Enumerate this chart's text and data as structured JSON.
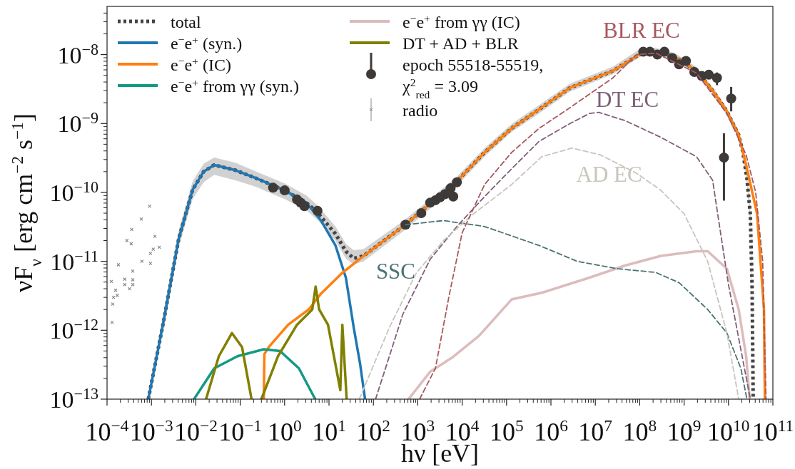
{
  "chart_data": {
    "type": "line",
    "xlabel": "hν [eV]",
    "ylabel": "νF$_{ν}$ [erg cm$^{−2}$ s$^{−1}$]",
    "log": "xy",
    "legend": "top left",
    "xlim": [
      0.0001,
      100000000000.0
    ],
    "ylim": [
      1e-13,
      5e-08
    ],
    "xticks": [
      {
        "value": 0.0001,
        "label": "10$^{−4}$"
      },
      {
        "value": 0.001,
        "label": "10$^{−3}$"
      },
      {
        "value": 0.01,
        "label": "10$^{−2}$"
      },
      {
        "value": 0.1,
        "label": "10$^{−1}$"
      },
      {
        "value": 1,
        "label": "10$^{0}$"
      },
      {
        "value": 10,
        "label": "10$^{1}$"
      },
      {
        "value": 100,
        "label": "10$^{2}$"
      },
      {
        "value": 1000.0,
        "label": "10$^{3}$"
      },
      {
        "value": 10000.0,
        "label": "10$^{4}$"
      },
      {
        "value": 100000.0,
        "label": "10$^{5}$"
      },
      {
        "value": 1000000.0,
        "label": "10$^{6}$"
      },
      {
        "value": 10000000.0,
        "label": "10$^{7}$"
      },
      {
        "value": 100000000.0,
        "label": "10$^{8}$"
      },
      {
        "value": 1000000000.0,
        "label": "10$^{9}$"
      },
      {
        "value": 10000000000.0,
        "label": "10$^{10}$"
      },
      {
        "value": 100000000000.0,
        "label": "10$^{11}$"
      }
    ],
    "yticks": [
      {
        "value": 1e-13,
        "label": "10$^{−13}$"
      },
      {
        "value": 1e-12,
        "label": "10$^{−12}$"
      },
      {
        "value": 1e-11,
        "label": "10$^{−11}$"
      },
      {
        "value": 1e-10,
        "label": "10$^{−10}$"
      },
      {
        "value": 1e-09,
        "label": "10$^{−9}$"
      },
      {
        "value": 1e-08,
        "label": "10$^{−8}$"
      }
    ],
    "series": [
      {
        "name": "total",
        "color": "#444444",
        "line_style": "dotted",
        "x": [
          0.00085,
          0.0019,
          0.0041,
          0.0085,
          0.015,
          0.026,
          0.078,
          0.23,
          1.0,
          3.1,
          5.5,
          14,
          24,
          36,
          60,
          460,
          1900.0,
          7600.0,
          32000.0,
          130000.0,
          540000.0,
          2700000.0,
          25000000.0,
          110000000.0,
          230000000.0,
          620000000.0,
          1900000000.0,
          4400000000.0,
          9200000000.0,
          17000000000.0,
          21000000000.0,
          26000000000.0,
          31000000000.0,
          34000000000.0,
          36000000000.0
        ],
        "values": [
          1e-13,
          1.4e-12,
          2.1e-11,
          1.1e-10,
          2e-10,
          2.5e-10,
          2.1e-10,
          1.6e-10,
          1.07e-10,
          7.1e-11,
          5.1e-11,
          2.5e-11,
          1.4e-11,
          1.1e-11,
          1.2e-11,
          3.2e-11,
          6.8e-11,
          1.45e-10,
          3.8e-10,
          8.5e-10,
          1.6e-09,
          3.3e-09,
          5.8e-09,
          1.05e-08,
          1.1e-08,
          9.3e-09,
          5.8e-09,
          3e-09,
          1.5e-09,
          6.8e-10,
          3.9e-10,
          1.6e-10,
          4.9e-11,
          4.6e-12,
          1e-13
        ],
        "lower": [
          1e-13,
          1.1e-12,
          1.6e-11,
          8e-11,
          1.4e-10,
          1.8e-10,
          1.5e-10,
          1.2e-10,
          8e-11,
          5.5e-11,
          4e-11,
          2e-11,
          1.1e-11,
          9e-12,
          1e-11,
          2.7e-11,
          5.8e-11,
          1.25e-10,
          3.3e-10,
          7.5e-10,
          1.4e-09,
          2.9e-09,
          5.2e-09,
          9.5e-09,
          1e-08,
          8.3e-09,
          5.2e-09,
          2.7e-09,
          1.3e-09,
          6e-10,
          3.4e-10,
          1.3e-10,
          3.5e-11,
          3e-12,
          1e-13
        ],
        "upper": [
          1e-13,
          1.9e-12,
          2.8e-11,
          1.45e-10,
          2.6e-10,
          3.2e-10,
          2.7e-10,
          2e-10,
          1.35e-10,
          9e-11,
          6.5e-11,
          3.2e-11,
          1.8e-11,
          1.45e-11,
          1.5e-11,
          3.8e-11,
          8e-11,
          1.7e-10,
          4.4e-10,
          9.8e-10,
          1.85e-09,
          3.8e-09,
          6.7e-09,
          1.25e-08,
          1.25e-08,
          1.05e-08,
          6.6e-09,
          3.4e-09,
          1.7e-09,
          7.8e-10,
          4.5e-10,
          1.9e-10,
          6e-11,
          6e-12,
          1e-13
        ]
      },
      {
        "name": "e$^{−}$e$^{+}$ (syn.)",
        "color": "#1f77b4",
        "line_style": "solid",
        "x": [
          0.00085,
          0.0019,
          0.0041,
          0.0085,
          0.015,
          0.026,
          0.078,
          0.23,
          1.0,
          3.1,
          6.6,
          14,
          24,
          36,
          50,
          65
        ],
        "values": [
          1e-13,
          1.4e-12,
          2.1e-11,
          1.1e-10,
          2e-10,
          2.5e-10,
          2.1e-10,
          1.6e-10,
          1.07e-10,
          7.1e-11,
          3.9e-11,
          1.7e-11,
          5.8e-12,
          1.1e-12,
          3.3e-13,
          1e-13
        ]
      },
      {
        "name": "e$^{−}$e$^{+}$ (IC)",
        "color": "#ff7f0e",
        "line_style": "solid",
        "x": [
          0.34,
          0.35,
          0.44,
          1.2,
          3.5,
          6.6,
          20,
          48,
          460,
          1900.0,
          7600.0,
          32000.0,
          130000.0,
          540000.0,
          2700000.0,
          25000000.0,
          110000000.0,
          230000000.0,
          620000000.0,
          1900000000.0,
          4400000000.0,
          9200000000.0,
          17000000000.0,
          21000000000.0,
          25000000000.0,
          44000000000.0,
          63000000000.0,
          66000000000.0
        ],
        "values": [
          1e-13,
          4.5e-13,
          5.7e-13,
          1.2e-12,
          2e-12,
          3.4e-12,
          6.8e-12,
          1.07e-11,
          3.2e-11,
          6.8e-11,
          1.45e-10,
          3.8e-10,
          8.5e-10,
          1.6e-09,
          3.3e-09,
          5.8e-09,
          1.05e-08,
          1.1e-08,
          9.3e-09,
          5.8e-09,
          3e-09,
          1.5e-09,
          6.8e-10,
          3.9e-10,
          2.5e-10,
          4.9e-11,
          2e-12,
          1e-13
        ]
      },
      {
        "name": "e$^{−}$e$^{+}$ from γγ (syn.)",
        "color": "#139a84",
        "line_style": "solid",
        "x": [
          0.0091,
          0.026,
          0.087,
          0.34,
          0.79,
          2.1,
          4.9
        ],
        "values": [
          1e-13,
          2.8e-13,
          4.2e-13,
          5.3e-13,
          5e-13,
          2.8e-13,
          1e-13
        ]
      },
      {
        "name": "e$^{−}$e$^{+}$ from γγ (IC)",
        "color": "#dcbcbc",
        "line_style": "solid",
        "x": [
          620,
          1900.0,
          5900.0,
          24000.0,
          130000.0,
          620000.0,
          7400000.0,
          47000000.0,
          300000000.0,
          1900000000.0,
          3400000000.0,
          9200000000.0,
          17000000000.0,
          25000000000.0,
          30000000000.0
        ],
        "values": [
          1e-13,
          2.5e-13,
          4e-13,
          8.3e-13,
          2.8e-12,
          3.5e-12,
          5.8e-12,
          8.7e-12,
          1.2e-11,
          1.4e-11,
          1.4e-11,
          7.8e-12,
          2e-12,
          4.2e-13,
          1e-13
        ]
      },
      {
        "name": "DT + AD + BLR",
        "color": "#808000",
        "line_style": "solid",
        "x": [
          0.017,
          0.033,
          0.065,
          0.11,
          0.18,
          0.24,
          0.3,
          0.71,
          1.9,
          4.2,
          5.0,
          6.0,
          9.5,
          18,
          20,
          25
        ],
        "values": [
          1e-13,
          4.2e-13,
          9.1e-13,
          5.7e-13,
          1e-13,
          null,
          1e-13,
          4.2e-13,
          1.2e-12,
          2e-12,
          4.3e-12,
          2e-12,
          1.2e-12,
          1.35e-13,
          1.2e-12,
          1e-13
        ]
      },
      {
        "name": "epoch 55518-55519,\nχ$^{2}$$_{red}$ = 3.09",
        "type": "scatter",
        "marker": "circle",
        "color": "#3d3a38",
        "x": [
          0.55,
          1.0,
          1.9,
          2.3,
          2.8,
          5.5,
          530,
          1200.0,
          1900.0,
          2500.0,
          3200.0,
          4100.0,
          5500.0,
          6300.0,
          6800.0,
          7600.0,
          120000000.0,
          170000000.0,
          250000000.0,
          360000000.0,
          540000000.0,
          770000000.0,
          1100000000.0,
          1700000000.0,
          2500000000.0,
          3600000000.0,
          5500000000.0,
          11500000000.0,
          7900000000.0
        ],
        "values": [
          1.17e-10,
          1.07e-10,
          7.9e-11,
          7.1e-11,
          6.3e-11,
          5.4e-11,
          3.4e-11,
          5e-11,
          7.1e-11,
          7.7e-11,
          8.5e-11,
          9.4e-11,
          1.15e-10,
          8.7e-11,
          null,
          1.4e-10,
          1.1e-08,
          1.1e-08,
          1e-08,
          1.1e-08,
          8.9e-09,
          7.2e-09,
          8.1e-09,
          5.6e-09,
          4.9e-09,
          5.1e-09,
          4.6e-09,
          2.3e-09,
          3.2e-10
        ],
        "errors": [
          null,
          null,
          null,
          null,
          null,
          null,
          null,
          null,
          null,
          null,
          null,
          null,
          null,
          null,
          null,
          null,
          null,
          null,
          null,
          null,
          null,
          null,
          null,
          null,
          null,
          null,
          [
            3.6e-09,
            5.5e-09
          ],
          [
            1.5e-09,
            3.4e-09
          ],
          [
            7.6e-11,
            7.2e-10
          ]
        ]
      },
      {
        "name": "radio",
        "type": "scatter",
        "marker": "cross",
        "color": "#8a8a8a",
        "x": [
          0.000125,
          0.00013,
          0.000134,
          0.00014,
          0.000156,
          0.00017,
          0.00018,
          0.00025,
          0.00025,
          0.00028,
          0.00032,
          0.00035,
          0.00036,
          0.00038,
          0.00038,
          0.00038,
          0.00059,
          0.00061,
          0.00091,
          0.00095,
          0.00095,
          0.0011,
          0.0012,
          0.0015
        ],
        "values": [
          5.1e-12,
          1.3e-12,
          2.4e-12,
          3e-12,
          3.8e-12,
          3.2e-12,
          8.9e-12,
          5.5e-12,
          4.6e-12,
          2e-11,
          4e-12,
          1.8e-11,
          2.9e-11,
          7.2e-12,
          5.4e-12,
          4.6e-12,
          4.1e-11,
          1e-11,
          6.3e-11,
          1.3e-11,
          9.3e-12,
          1.5e-11,
          2.3e-11,
          1.6e-11
        ]
      },
      {
        "name": "SSC",
        "color": "#4b7373",
        "line_style": "dashed",
        "x": [
          530,
          3800.0,
          32000.0,
          540000.0,
          3900000.0,
          32000000.0,
          230000000.0,
          770000000.0,
          3400000000.0,
          9200000000.0,
          19000000000.0,
          26000000000.0
        ],
        "values": [
          3.4e-11,
          3.9e-11,
          3.2e-11,
          1.7e-11,
          1e-11,
          7.8e-12,
          6.9e-12,
          4.9e-12,
          2e-12,
          9.1e-13,
          2.8e-13,
          1e-13
        ]
      },
      {
        "name": "DT EC",
        "color": "#7f5f78",
        "line_style": "dashed",
        "x": [
          112,
          460,
          1900.0,
          7600.0,
          32000.0,
          130000.0,
          540000.0,
          2700000.0,
          7400000.0,
          12000000.0,
          47000000.0,
          300000000.0,
          1900000000.0,
          4400000000.0,
          5700000000.0,
          10000000000.0,
          31000000000.0
        ],
        "values": [
          1e-13,
          1.7e-12,
          1.07e-11,
          3.2e-11,
          8.7e-11,
          2.2e-10,
          5.5e-10,
          1e-09,
          1.4e-09,
          1.45e-09,
          1.1e-09,
          6.3e-10,
          3.3e-10,
          1.5e-10,
          4.9e-11,
          4.6e-12,
          1e-13
        ]
      },
      {
        "name": "AD EC",
        "color": "#c9c5bd",
        "line_style": "dashed",
        "x": [
          48,
          230,
          930,
          3800.0,
          16000.0,
          130000.0,
          620000.0,
          3000000.0,
          13000000.0,
          85000000.0,
          300000000.0,
          1000000000.0,
          3400000000.0,
          9200000000.0,
          17000000000.0
        ],
        "values": [
          1e-13,
          1.1e-12,
          6.8e-12,
          2e-11,
          4.6e-11,
          1.3e-10,
          3.3e-10,
          4.4e-10,
          3.5e-10,
          1.9e-10,
          1.07e-10,
          4.9e-11,
          1e-11,
          9.1e-13,
          1e-13
        ]
      },
      {
        "name": "BLR EC",
        "color": "#a9585f",
        "line_style": "dashed",
        "x": [
          1100.0,
          2500.0,
          5000.0,
          10000.0,
          32000.0,
          130000.0,
          540000.0,
          2700000.0,
          25000000.0,
          85000000.0,
          230000000.0,
          1900000000.0,
          9200000000.0,
          25000000000.0,
          41000000000.0,
          59000000000.0,
          70000000000.0
        ],
        "values": [
          1e-13,
          2.8e-13,
          3e-12,
          2.6e-11,
          1.3e-10,
          3.8e-10,
          8.5e-10,
          1.7e-09,
          4.6e-09,
          1e-08,
          1.05e-08,
          5.4e-09,
          1.4e-09,
          3.5e-10,
          1e-10,
          1e-11,
          1e-13
        ]
      }
    ]
  }
}
